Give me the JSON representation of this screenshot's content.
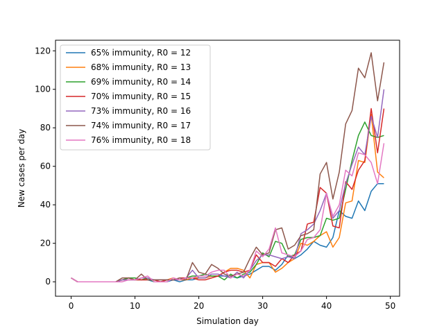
{
  "chart_data": {
    "type": "line",
    "xlabel": "Simulation day",
    "ylabel": "New cases per day",
    "xlim": [
      -2.45,
      51.45
    ],
    "ylim": [
      -7.5,
      125.5
    ],
    "xticks": [
      0,
      10,
      20,
      30,
      40,
      50
    ],
    "yticks": [
      0,
      20,
      40,
      60,
      80,
      100,
      120
    ],
    "grid": false,
    "legend_position": "top-left",
    "x": [
      0,
      1,
      2,
      3,
      4,
      5,
      6,
      7,
      8,
      9,
      10,
      11,
      12,
      13,
      14,
      15,
      16,
      17,
      18,
      19,
      20,
      21,
      22,
      23,
      24,
      25,
      26,
      27,
      28,
      29,
      30,
      31,
      32,
      33,
      34,
      35,
      36,
      37,
      38,
      39,
      40,
      41,
      42,
      43,
      44,
      45,
      46,
      47,
      48,
      49
    ],
    "series": [
      {
        "name": "65% immunity, R0 = 12",
        "color": "#1f77b4",
        "values": [
          2,
          0,
          0,
          0,
          0,
          0,
          0,
          0,
          1,
          1,
          1,
          1,
          1,
          0,
          0,
          0,
          1,
          0,
          1,
          1,
          2,
          2,
          3,
          3,
          3,
          3,
          2,
          3,
          4,
          6,
          8,
          8,
          6,
          9,
          14,
          12,
          14,
          17,
          21,
          19,
          18,
          23,
          37,
          34,
          33,
          42,
          37,
          47,
          51,
          51
        ]
      },
      {
        "name": "68% immunity, R0 = 13",
        "color": "#ff7f0e",
        "values": [
          2,
          0,
          0,
          0,
          0,
          0,
          0,
          0,
          1,
          2,
          1,
          1,
          1,
          1,
          0,
          1,
          2,
          1,
          1,
          2,
          2,
          2,
          3,
          3,
          5,
          7,
          7,
          6,
          2,
          9,
          10,
          10,
          5,
          7,
          10,
          12,
          20,
          19,
          21,
          24,
          26,
          18,
          23,
          41,
          42,
          63,
          62,
          87,
          57,
          54
        ]
      },
      {
        "name": "69% immunity, R0 = 14",
        "color": "#2ca02c",
        "values": [
          2,
          0,
          0,
          0,
          0,
          0,
          0,
          0,
          1,
          2,
          2,
          1,
          2,
          0,
          0,
          1,
          1,
          1,
          2,
          3,
          3,
          4,
          3,
          3,
          1,
          4,
          2,
          4,
          5,
          9,
          15,
          13,
          21,
          20,
          13,
          14,
          22,
          23,
          23,
          24,
          33,
          32,
          33,
          48,
          63,
          76,
          83,
          76,
          75,
          76
        ]
      },
      {
        "name": "70% immunity, R0 = 15",
        "color": "#d62728",
        "values": [
          2,
          0,
          0,
          0,
          0,
          0,
          0,
          0,
          1,
          1,
          1,
          1,
          1,
          1,
          0,
          1,
          1,
          2,
          2,
          2,
          1,
          1,
          2,
          3,
          5,
          6,
          6,
          5,
          6,
          14,
          10,
          10,
          8,
          12,
          10,
          14,
          16,
          30,
          31,
          49,
          46,
          29,
          28,
          52,
          48,
          58,
          63,
          90,
          67,
          90
        ]
      },
      {
        "name": "73% immunity, R0 = 16",
        "color": "#9467bd",
        "values": [
          2,
          0,
          0,
          0,
          0,
          0,
          0,
          0,
          1,
          1,
          1,
          2,
          2,
          1,
          1,
          1,
          1,
          1,
          2,
          6,
          2,
          2,
          4,
          4,
          3,
          2,
          5,
          2,
          6,
          11,
          14,
          14,
          13,
          12,
          13,
          12,
          25,
          27,
          30,
          37,
          46,
          33,
          37,
          51,
          61,
          70,
          66,
          86,
          75,
          100
        ]
      },
      {
        "name": "74% immunity, R0 = 17",
        "color": "#8c564b",
        "values": [
          2,
          0,
          0,
          0,
          0,
          0,
          0,
          0,
          2,
          2,
          1,
          4,
          1,
          1,
          1,
          1,
          1,
          2,
          1,
          10,
          5,
          4,
          9,
          7,
          4,
          3,
          4,
          5,
          12,
          18,
          14,
          15,
          27,
          28,
          17,
          19,
          24,
          25,
          27,
          56,
          62,
          43,
          57,
          82,
          89,
          111,
          106,
          119,
          94,
          114
        ]
      },
      {
        "name": "76% immunity, R0 = 18",
        "color": "#e377c2",
        "values": [
          2,
          0,
          0,
          0,
          0,
          0,
          0,
          0,
          0,
          1,
          1,
          2,
          3,
          0,
          0,
          0,
          2,
          1,
          2,
          2,
          3,
          3,
          5,
          6,
          6,
          2,
          4,
          3,
          6,
          16,
          13,
          17,
          28,
          15,
          14,
          13,
          16,
          22,
          23,
          27,
          46,
          34,
          40,
          58,
          55,
          67,
          66,
          62,
          51,
          72
        ]
      }
    ]
  }
}
